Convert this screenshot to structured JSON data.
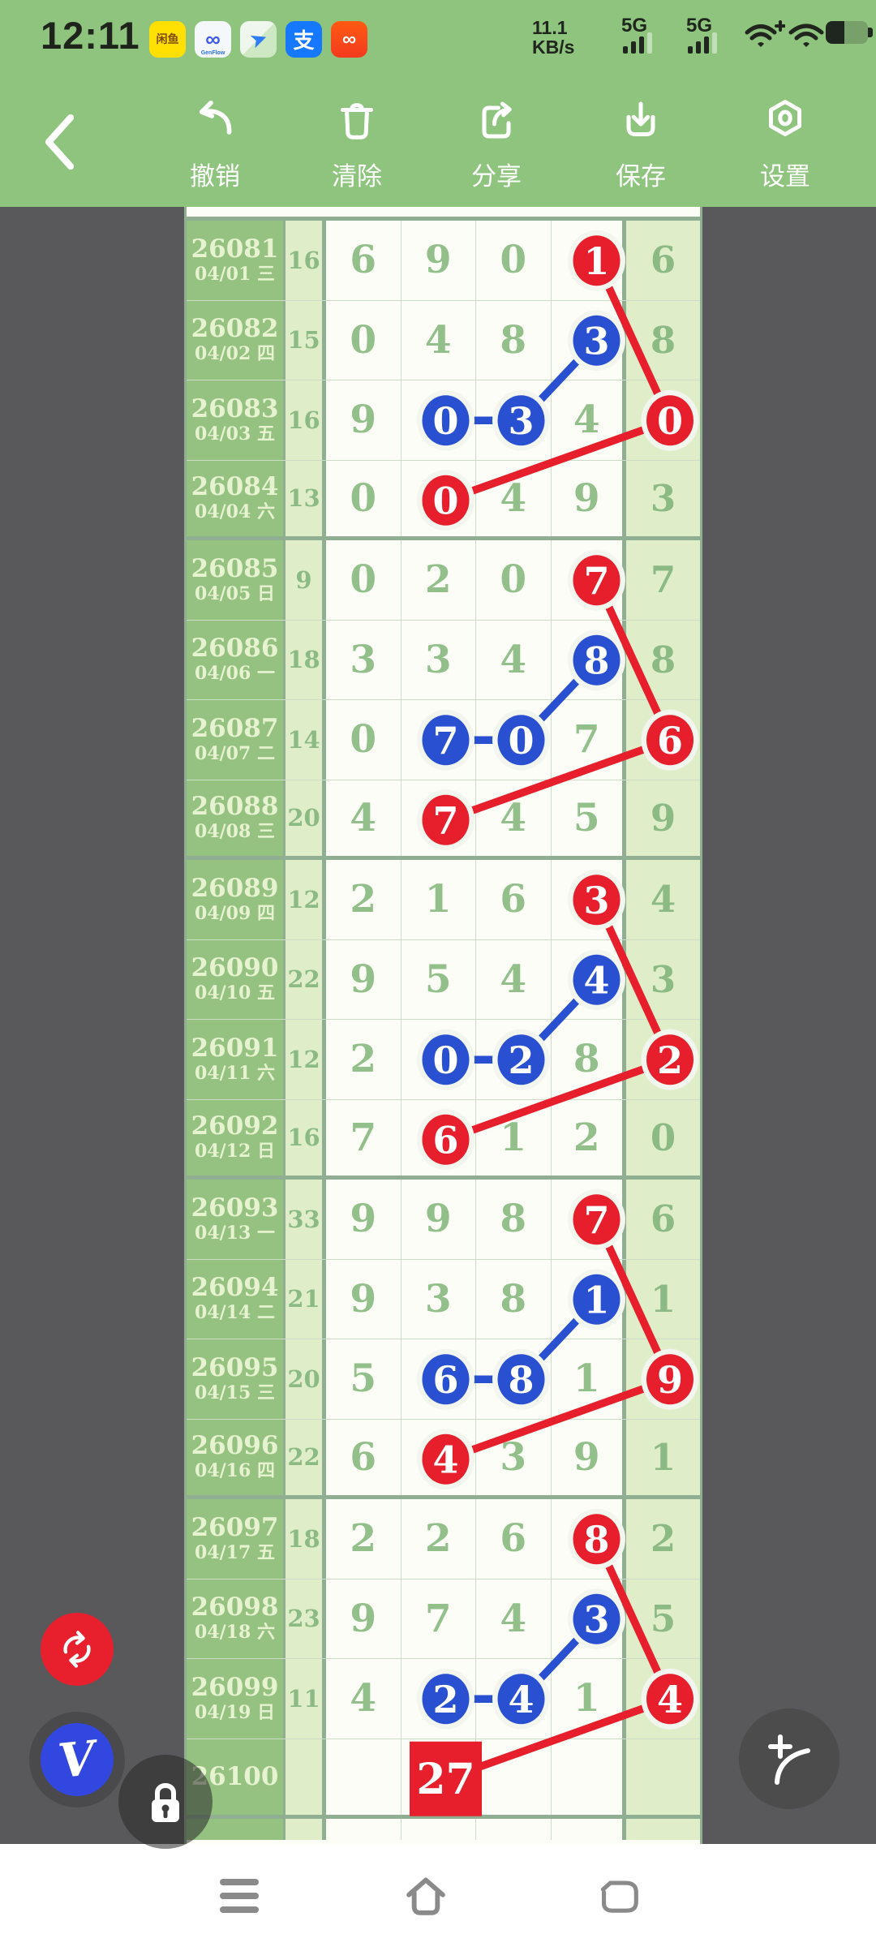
{
  "status_bar": {
    "time": "12:11",
    "net_speed_value": "11.1",
    "net_speed_unit": "KB/s",
    "sim1": "5G",
    "sim2": "5G",
    "app_icons": [
      "xianyu-icon",
      "genflow-icon",
      "maps-icon",
      "alipay-icon",
      "kuaishou-icon"
    ],
    "xianyu_text": "闲鱼",
    "genflow_glyph": "∞",
    "genflow_text": "GenFlow",
    "maps_glyph": "➤",
    "alipay_text": "支",
    "kuaishou_glyph": "∞",
    "battery_level_pct": 45
  },
  "toolbar": {
    "back": "‹",
    "items": [
      {
        "id": "undo",
        "label": "撤销"
      },
      {
        "id": "clear",
        "label": "清除"
      },
      {
        "id": "share",
        "label": "分享"
      },
      {
        "id": "save",
        "label": "保存"
      },
      {
        "id": "settings",
        "label": "设置"
      }
    ]
  },
  "fabs": {
    "v_label": "V"
  },
  "chart": {
    "colors": {
      "red": "#e71e2c",
      "blue": "#2a50d2",
      "halo": "#f3f5ef",
      "digit_green": "#92bf8a",
      "period_bg": "#95c281",
      "pale_bg": "#dfeec8",
      "sage_border": "#8fae92",
      "canvas_gray": "#59595b",
      "header_green": "#8ec47d"
    },
    "rows": [
      {
        "period": "26081",
        "date": "04/01",
        "week": "三",
        "count": "16",
        "cells": [
          "6",
          "9",
          "0",
          "1",
          "6"
        ],
        "markers": [
          {
            "col": 3,
            "type": "red"
          }
        ]
      },
      {
        "period": "26082",
        "date": "04/02",
        "week": "四",
        "count": "15",
        "cells": [
          "0",
          "4",
          "8",
          "3",
          "8"
        ],
        "markers": [
          {
            "col": 3,
            "type": "blue"
          }
        ]
      },
      {
        "period": "26083",
        "date": "04/03",
        "week": "五",
        "count": "16",
        "cells": [
          "9",
          "0",
          "3",
          "4",
          "0"
        ],
        "markers": [
          {
            "col": 1,
            "type": "blue"
          },
          {
            "col": 2,
            "type": "blue"
          },
          {
            "col": 4,
            "type": "red"
          }
        ]
      },
      {
        "period": "26084",
        "date": "04/04",
        "week": "六",
        "count": "13",
        "cells": [
          "0",
          "0",
          "4",
          "9",
          "3"
        ],
        "markers": [
          {
            "col": 1,
            "type": "red"
          }
        ]
      },
      {
        "period": "26085",
        "date": "04/05",
        "week": "日",
        "count": "9",
        "cells": [
          "0",
          "2",
          "0",
          "7",
          "7"
        ],
        "markers": [
          {
            "col": 3,
            "type": "red"
          }
        ]
      },
      {
        "period": "26086",
        "date": "04/06",
        "week": "一",
        "count": "18",
        "cells": [
          "3",
          "3",
          "4",
          "8",
          "8"
        ],
        "markers": [
          {
            "col": 3,
            "type": "blue"
          }
        ]
      },
      {
        "period": "26087",
        "date": "04/07",
        "week": "二",
        "count": "14",
        "cells": [
          "0",
          "7",
          "0",
          "7",
          "6"
        ],
        "markers": [
          {
            "col": 1,
            "type": "blue"
          },
          {
            "col": 2,
            "type": "blue"
          },
          {
            "col": 4,
            "type": "red"
          }
        ]
      },
      {
        "period": "26088",
        "date": "04/08",
        "week": "三",
        "count": "20",
        "cells": [
          "4",
          "7",
          "4",
          "5",
          "9"
        ],
        "markers": [
          {
            "col": 1,
            "type": "red"
          }
        ]
      },
      {
        "period": "26089",
        "date": "04/09",
        "week": "四",
        "count": "12",
        "cells": [
          "2",
          "1",
          "6",
          "3",
          "4"
        ],
        "markers": [
          {
            "col": 3,
            "type": "red"
          }
        ]
      },
      {
        "period": "26090",
        "date": "04/10",
        "week": "五",
        "count": "22",
        "cells": [
          "9",
          "5",
          "4",
          "4",
          "3"
        ],
        "markers": [
          {
            "col": 3,
            "type": "blue"
          }
        ]
      },
      {
        "period": "26091",
        "date": "04/11",
        "week": "六",
        "count": "12",
        "cells": [
          "2",
          "0",
          "2",
          "8",
          "2"
        ],
        "markers": [
          {
            "col": 1,
            "type": "blue"
          },
          {
            "col": 2,
            "type": "blue"
          },
          {
            "col": 4,
            "type": "red"
          }
        ]
      },
      {
        "period": "26092",
        "date": "04/12",
        "week": "日",
        "count": "16",
        "cells": [
          "7",
          "6",
          "1",
          "2",
          "0"
        ],
        "markers": [
          {
            "col": 1,
            "type": "red"
          }
        ]
      },
      {
        "period": "26093",
        "date": "04/13",
        "week": "一",
        "count": "33",
        "cells": [
          "9",
          "9",
          "8",
          "7",
          "6"
        ],
        "markers": [
          {
            "col": 3,
            "type": "red"
          }
        ]
      },
      {
        "period": "26094",
        "date": "04/14",
        "week": "二",
        "count": "21",
        "cells": [
          "9",
          "3",
          "8",
          "1",
          "1"
        ],
        "markers": [
          {
            "col": 3,
            "type": "blue"
          }
        ]
      },
      {
        "period": "26095",
        "date": "04/15",
        "week": "三",
        "count": "20",
        "cells": [
          "5",
          "6",
          "8",
          "1",
          "9"
        ],
        "markers": [
          {
            "col": 1,
            "type": "blue"
          },
          {
            "col": 2,
            "type": "blue"
          },
          {
            "col": 4,
            "type": "red"
          }
        ]
      },
      {
        "period": "26096",
        "date": "04/16",
        "week": "四",
        "count": "22",
        "cells": [
          "6",
          "4",
          "3",
          "9",
          "1"
        ],
        "markers": [
          {
            "col": 1,
            "type": "red"
          }
        ]
      },
      {
        "period": "26097",
        "date": "04/17",
        "week": "五",
        "count": "18",
        "cells": [
          "2",
          "2",
          "6",
          "8",
          "2"
        ],
        "markers": [
          {
            "col": 3,
            "type": "red"
          }
        ]
      },
      {
        "period": "26098",
        "date": "04/18",
        "week": "六",
        "count": "23",
        "cells": [
          "9",
          "7",
          "4",
          "3",
          "5"
        ],
        "markers": [
          {
            "col": 3,
            "type": "blue"
          }
        ]
      },
      {
        "period": "26099",
        "date": "04/19",
        "week": "日",
        "count": "11",
        "cells": [
          "4",
          "2",
          "4",
          "1",
          "4"
        ],
        "markers": [
          {
            "col": 1,
            "type": "blue"
          },
          {
            "col": 2,
            "type": "blue"
          },
          {
            "col": 4,
            "type": "red"
          }
        ]
      },
      {
        "period": "26100",
        "date": "",
        "week": "",
        "count": "",
        "cells": [
          "",
          "27",
          "",
          "",
          ""
        ],
        "markers": [
          {
            "col": 1,
            "type": "square"
          }
        ]
      }
    ],
    "lines": [
      {
        "color": "red",
        "points": [
          [
            0,
            3
          ],
          [
            2,
            4
          ],
          [
            3,
            1
          ]
        ]
      },
      {
        "color": "blue",
        "points": [
          [
            1,
            3
          ],
          [
            2,
            2
          ],
          [
            2,
            1
          ]
        ]
      },
      {
        "color": "red",
        "points": [
          [
            4,
            3
          ],
          [
            6,
            4
          ],
          [
            7,
            1
          ]
        ]
      },
      {
        "color": "blue",
        "points": [
          [
            5,
            3
          ],
          [
            6,
            2
          ],
          [
            6,
            1
          ]
        ]
      },
      {
        "color": "red",
        "points": [
          [
            8,
            3
          ],
          [
            10,
            4
          ],
          [
            11,
            1
          ]
        ]
      },
      {
        "color": "blue",
        "points": [
          [
            9,
            3
          ],
          [
            10,
            2
          ],
          [
            10,
            1
          ]
        ]
      },
      {
        "color": "red",
        "points": [
          [
            12,
            3
          ],
          [
            14,
            4
          ],
          [
            15,
            1
          ]
        ]
      },
      {
        "color": "blue",
        "points": [
          [
            13,
            3
          ],
          [
            14,
            2
          ],
          [
            14,
            1
          ]
        ]
      },
      {
        "color": "red",
        "points": [
          [
            16,
            3
          ],
          [
            18,
            4
          ],
          [
            19,
            1
          ]
        ]
      },
      {
        "color": "blue",
        "points": [
          [
            17,
            3
          ],
          [
            18,
            2
          ],
          [
            18,
            1
          ]
        ]
      }
    ]
  },
  "navbar": {
    "items": [
      "menu",
      "home",
      "back"
    ]
  }
}
